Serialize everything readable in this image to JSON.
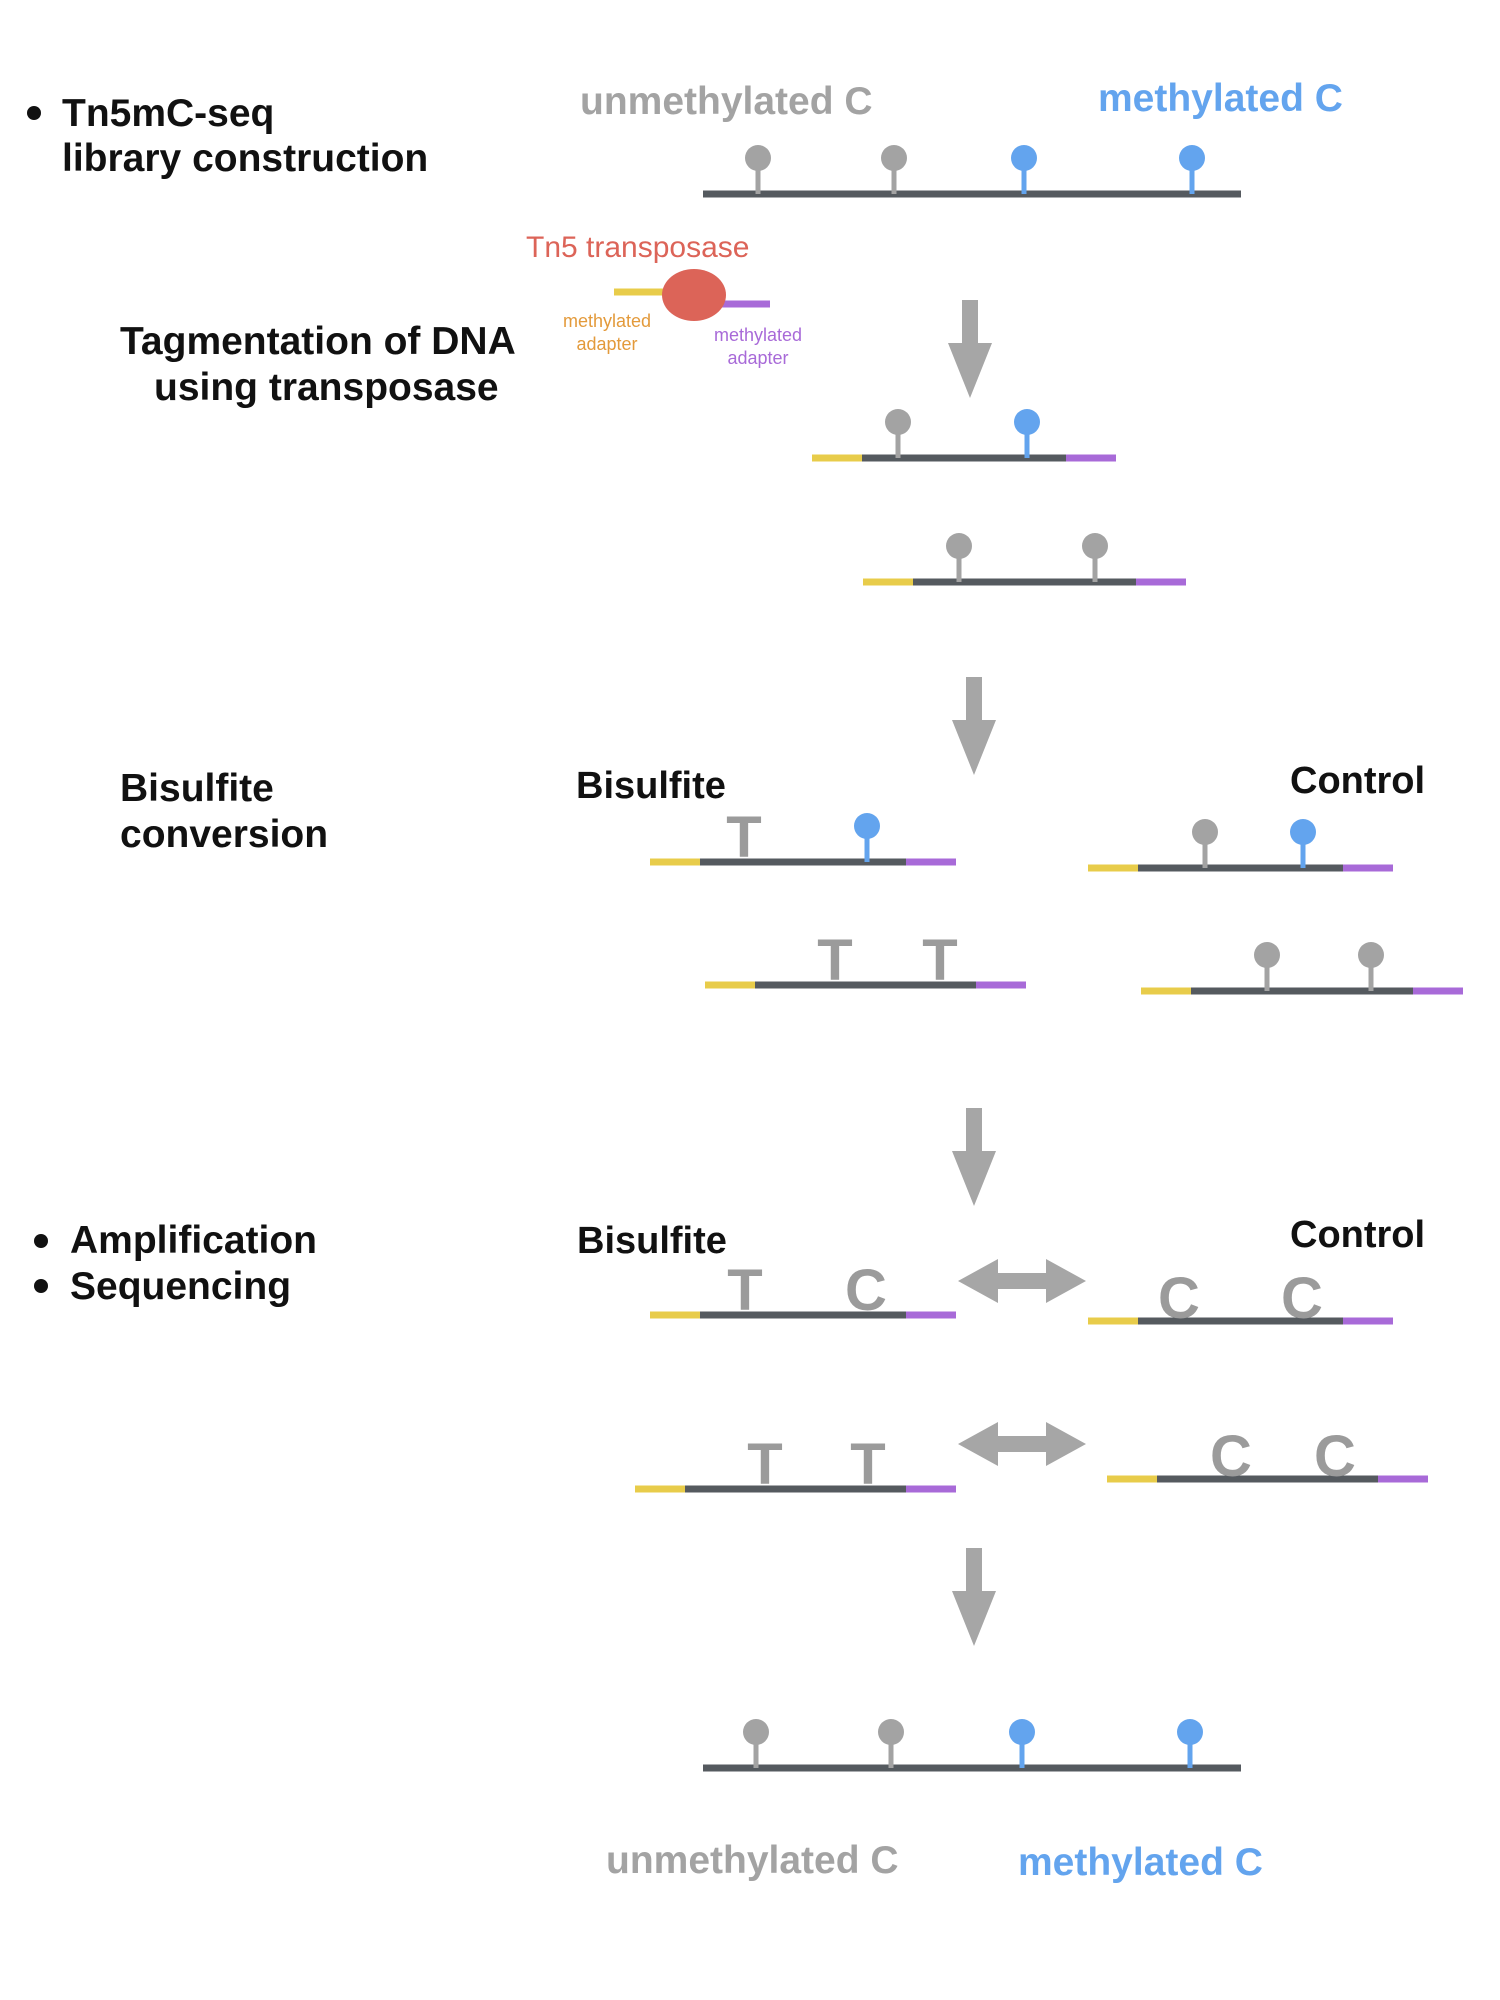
{
  "colors": {
    "strand": "#555a5f",
    "unmethylated": "#a3a3a3",
    "methylated": "#63a4ee",
    "adapter_left": "#e8cc4a",
    "adapter_right": "#a86ad8",
    "tn5": "#dc6458",
    "adapter_label_left": "#e39a3b",
    "arrow": "#a6a6a6",
    "base": "#9b9b9b"
  },
  "steps": {
    "library_line1": "Tn5mC-seq",
    "library_line2": "library construction",
    "tagmentation_line1": "Tagmentation of DNA",
    "tagmentation_line2": "using transposase",
    "bisulfite_line1": "Bisulfite",
    "bisulfite_line2": "conversion",
    "amplification": "Amplification",
    "sequencing": "Sequencing"
  },
  "legend": {
    "unmethylated": "unmethylated C",
    "methylated": "methylated C"
  },
  "transposase": {
    "name": "Tn5 transposase",
    "left_adapter_line1": "methylated",
    "left_adapter_line2": "adapter",
    "right_adapter_line1": "methylated",
    "right_adapter_line2": "adapter"
  },
  "panels": {
    "bisulfite": "Bisulfite",
    "control": "Control"
  },
  "bases": {
    "T": "T",
    "C": "C"
  },
  "icons": {
    "methyl_marker": "lollipop-marker",
    "flow_arrow": "down-arrow-icon",
    "compare_arrow": "double-arrow-icon"
  }
}
